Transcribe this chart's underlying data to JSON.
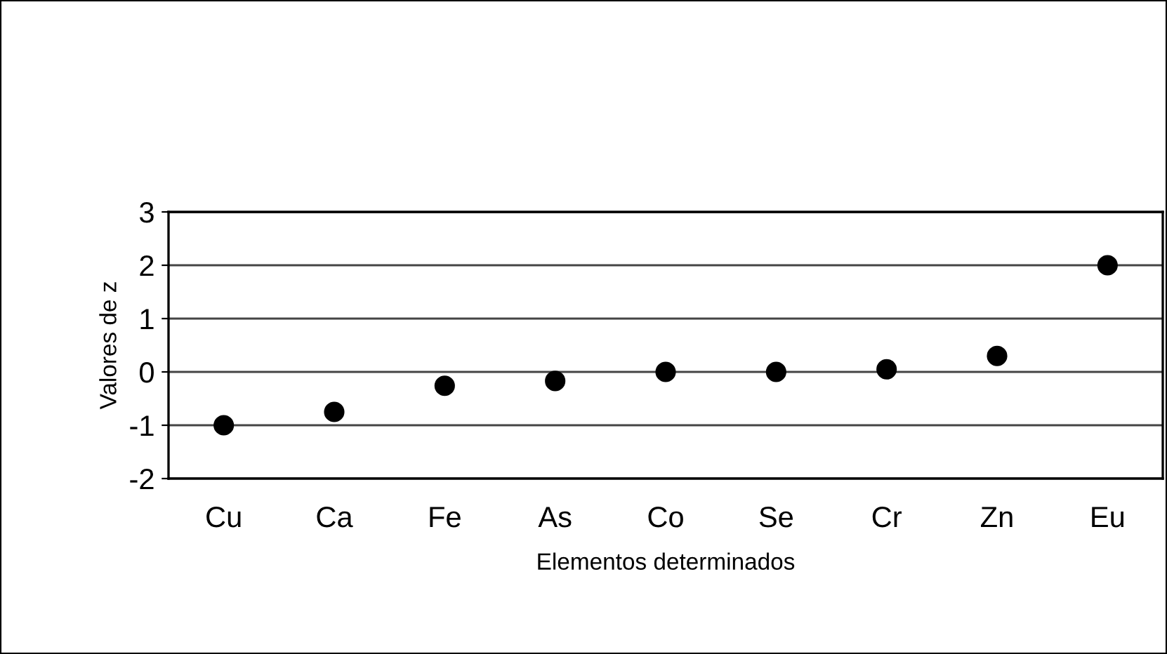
{
  "chart_data": {
    "type": "scatter",
    "xlabel": "Elementos determinados",
    "ylabel": "Valores de z",
    "categories": [
      "Cu",
      "Ca",
      "Fe",
      "As",
      "Co",
      "Se",
      "Cr",
      "Zn",
      "Eu"
    ],
    "series": [
      {
        "color": "#000000",
        "values": [
          -1.0,
          -0.75,
          -0.26,
          -0.17,
          0.0,
          0.0,
          0.05,
          0.3,
          2.0
        ]
      }
    ],
    "ylim": [
      -2,
      3
    ],
    "yticks": [
      -2,
      -1,
      0,
      1,
      2,
      3
    ],
    "grid": "y",
    "marker": "circle",
    "legend": false
  }
}
